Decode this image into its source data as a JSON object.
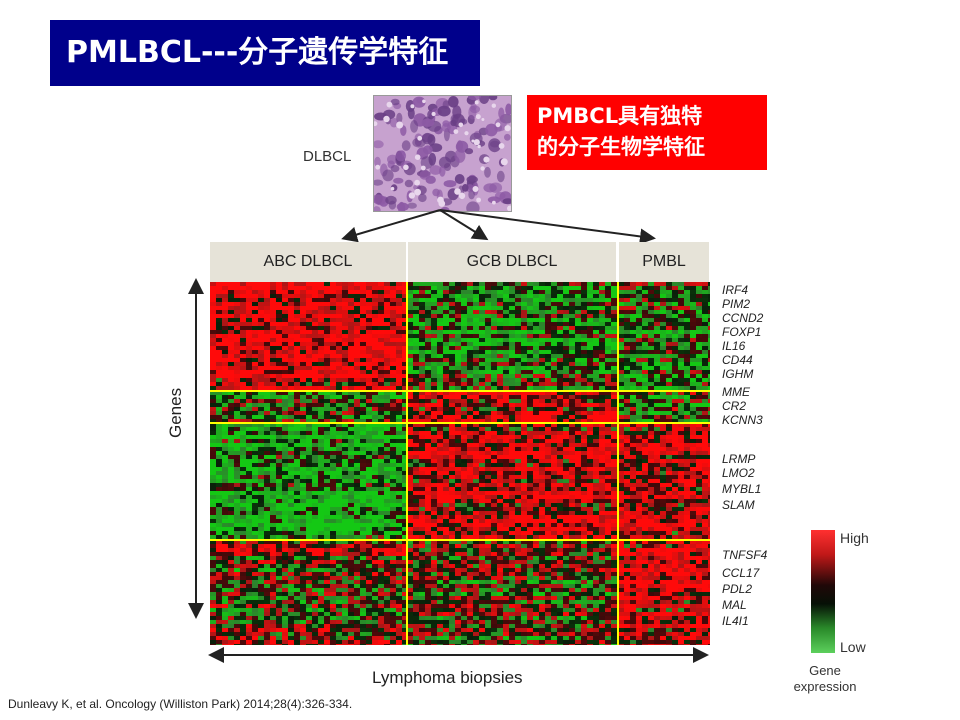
{
  "title": "PMLBCL---分子遗传学特征",
  "callout": {
    "line1": "PMBCL具有独特",
    "line2": "的分子生物学特征"
  },
  "figure": {
    "source_label": "DLBCL",
    "columns": [
      "ABC DLBCL",
      "GCB DLBCL",
      "PMBL"
    ],
    "genes": [
      "IRF4",
      "PIM2",
      "CCND2",
      "FOXP1",
      "IL16",
      "CD44",
      "IGHM",
      "MME",
      "CR2",
      "KCNN3",
      "LRMP",
      "LMO2",
      "MYBL1",
      "SLAM",
      "TNFSF4",
      "CCL17",
      "PDL2",
      "MAL",
      "IL4I1"
    ],
    "y_axis_label": "Genes",
    "x_axis_label": "Lymphoma biopsies",
    "legend": {
      "high": "High",
      "low": "Low",
      "title_line1": "Gene",
      "title_line2": "expression"
    },
    "colors": {
      "high": "#ff2020",
      "low": "#4cc04c",
      "divider": "#ffff00"
    }
  },
  "citation": "Dunleavy K, et al. Oncology (Williston Park) 2014;28(4):326-334."
}
